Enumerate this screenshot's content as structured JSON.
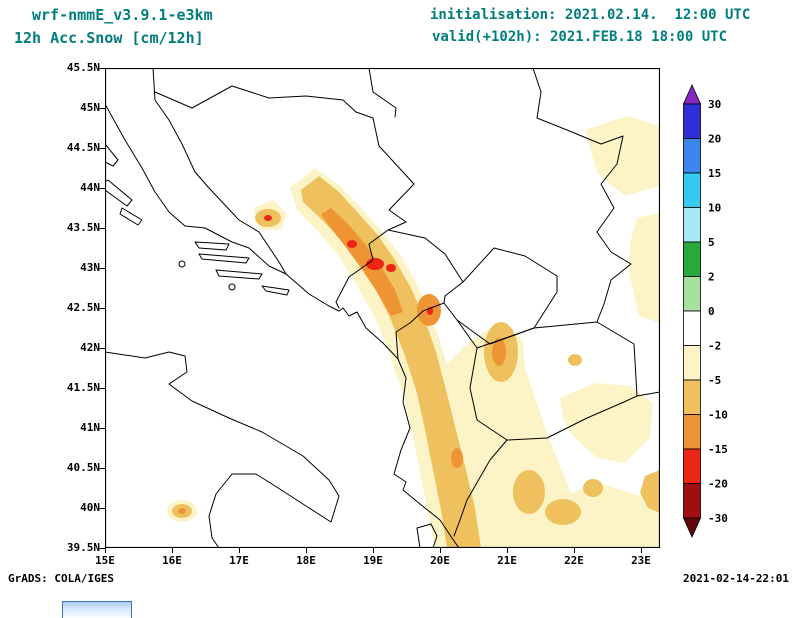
{
  "header": {
    "model": "wrf-nmmE_v3.9.1-e3km",
    "field": "12h Acc.Snow [cm/12h]",
    "init": "initialisation: 2021.02.14.  12:00 UTC",
    "valid": "valid(+102h): 2021.FEB.18 18:00 UTC"
  },
  "footer": {
    "left": "GrADS: COLA/IGES",
    "right": "2021-02-14-22:01"
  },
  "colors": {
    "teal": "#007d7d",
    "pale": "#fcf4c7",
    "gold": "#eec15e",
    "orange": "#ef9434",
    "red": "#ec2517",
    "map-line": "#000000"
  },
  "chart_data": {
    "type": "filled-contour-map",
    "title": "12h Acc.Snow [cm/12h]",
    "model": "wrf-nmmE_v3.9.1-e3km",
    "initialisation": "2021.02.14. 12:00 UTC",
    "valid": "2021.FEB.18 18:00 UTC (+102h)",
    "region": "Balkans / Adriatic (WRF-NMM e3km domain)",
    "extent": {
      "lon": [
        15.0,
        23.3
      ],
      "lat": [
        39.5,
        45.5
      ]
    },
    "lon_ticks": [
      "15E",
      "16E",
      "17E",
      "18E",
      "19E",
      "20E",
      "21E",
      "22E",
      "23E"
    ],
    "lat_ticks": [
      "45.5N",
      "45N",
      "44.5N",
      "44N",
      "43.5N",
      "43N",
      "42.5N",
      "42N",
      "41.5N",
      "41N",
      "40.5N",
      "40N",
      "39.5N"
    ],
    "grid": false,
    "colorbar": {
      "position": "right",
      "levels": [
        "30",
        "20",
        "15",
        "10",
        "5",
        "2",
        "0",
        "-2",
        "-5",
        "-10",
        "-15",
        "-20",
        "-30"
      ],
      "segment_colors": [
        "#2f31d8",
        "#3c86f0",
        "#35c8f0",
        "#a5e9f5",
        "#28a93c",
        "#a8e0a0",
        "#ffffff",
        "#fcf4c7",
        "#eec15e",
        "#ef9434",
        "#ec2517",
        "#a00f0f"
      ],
      "arrow_top_color": "#8428c4",
      "arrow_bottom_color": "#5f0606"
    },
    "snow_regions": [
      {
        "name": "Central Dinarides band (E Bosnia - N Montenegro)",
        "approx_lon": [
          17.6,
          19.6
        ],
        "approx_lat": [
          42.2,
          44.1
        ],
        "max_bin": "red"
      },
      {
        "name": "Isolated spot, W Bosnia",
        "approx_center": [
          17.4,
          43.6
        ],
        "max_bin": "red"
      },
      {
        "name": "Montenegro coastal mountains",
        "approx_center": [
          19.8,
          42.5
        ],
        "max_bin": "orange"
      },
      {
        "name": "Albania - Kosovo mountain band",
        "approx_lon": [
          19.6,
          20.6
        ],
        "approx_lat": [
          39.6,
          42.3
        ],
        "max_bin": "orange"
      },
      {
        "name": "Sar range / W North Macedonia",
        "approx_center": [
          20.9,
          42.0
        ],
        "max_bin": "orange"
      },
      {
        "name": "S Serbia / Macedonia / N Greece patches",
        "approx_lon": [
          20.5,
          23.3
        ],
        "approx_lat": [
          39.5,
          42.3
        ],
        "max_bin": "gold"
      },
      {
        "name": "E Serbia patch (top right)",
        "approx_lon": [
          22.0,
          23.3
        ],
        "approx_lat": [
          44.0,
          45.0
        ],
        "max_bin": "pale-yellow"
      },
      {
        "name": "Right-edge column (W Bulgaria)",
        "approx_lon": [
          23.0,
          23.3
        ],
        "approx_lat": [
          42.3,
          43.6
        ],
        "max_bin": "pale-yellow"
      },
      {
        "name": "S Italy Apennines spot",
        "approx_center": [
          16.1,
          40.0
        ],
        "max_bin": "orange"
      },
      {
        "name": "SW Bulgaria edge spot",
        "approx_center": [
          23.2,
          40.2
        ],
        "max_bin": "gold"
      }
    ]
  }
}
